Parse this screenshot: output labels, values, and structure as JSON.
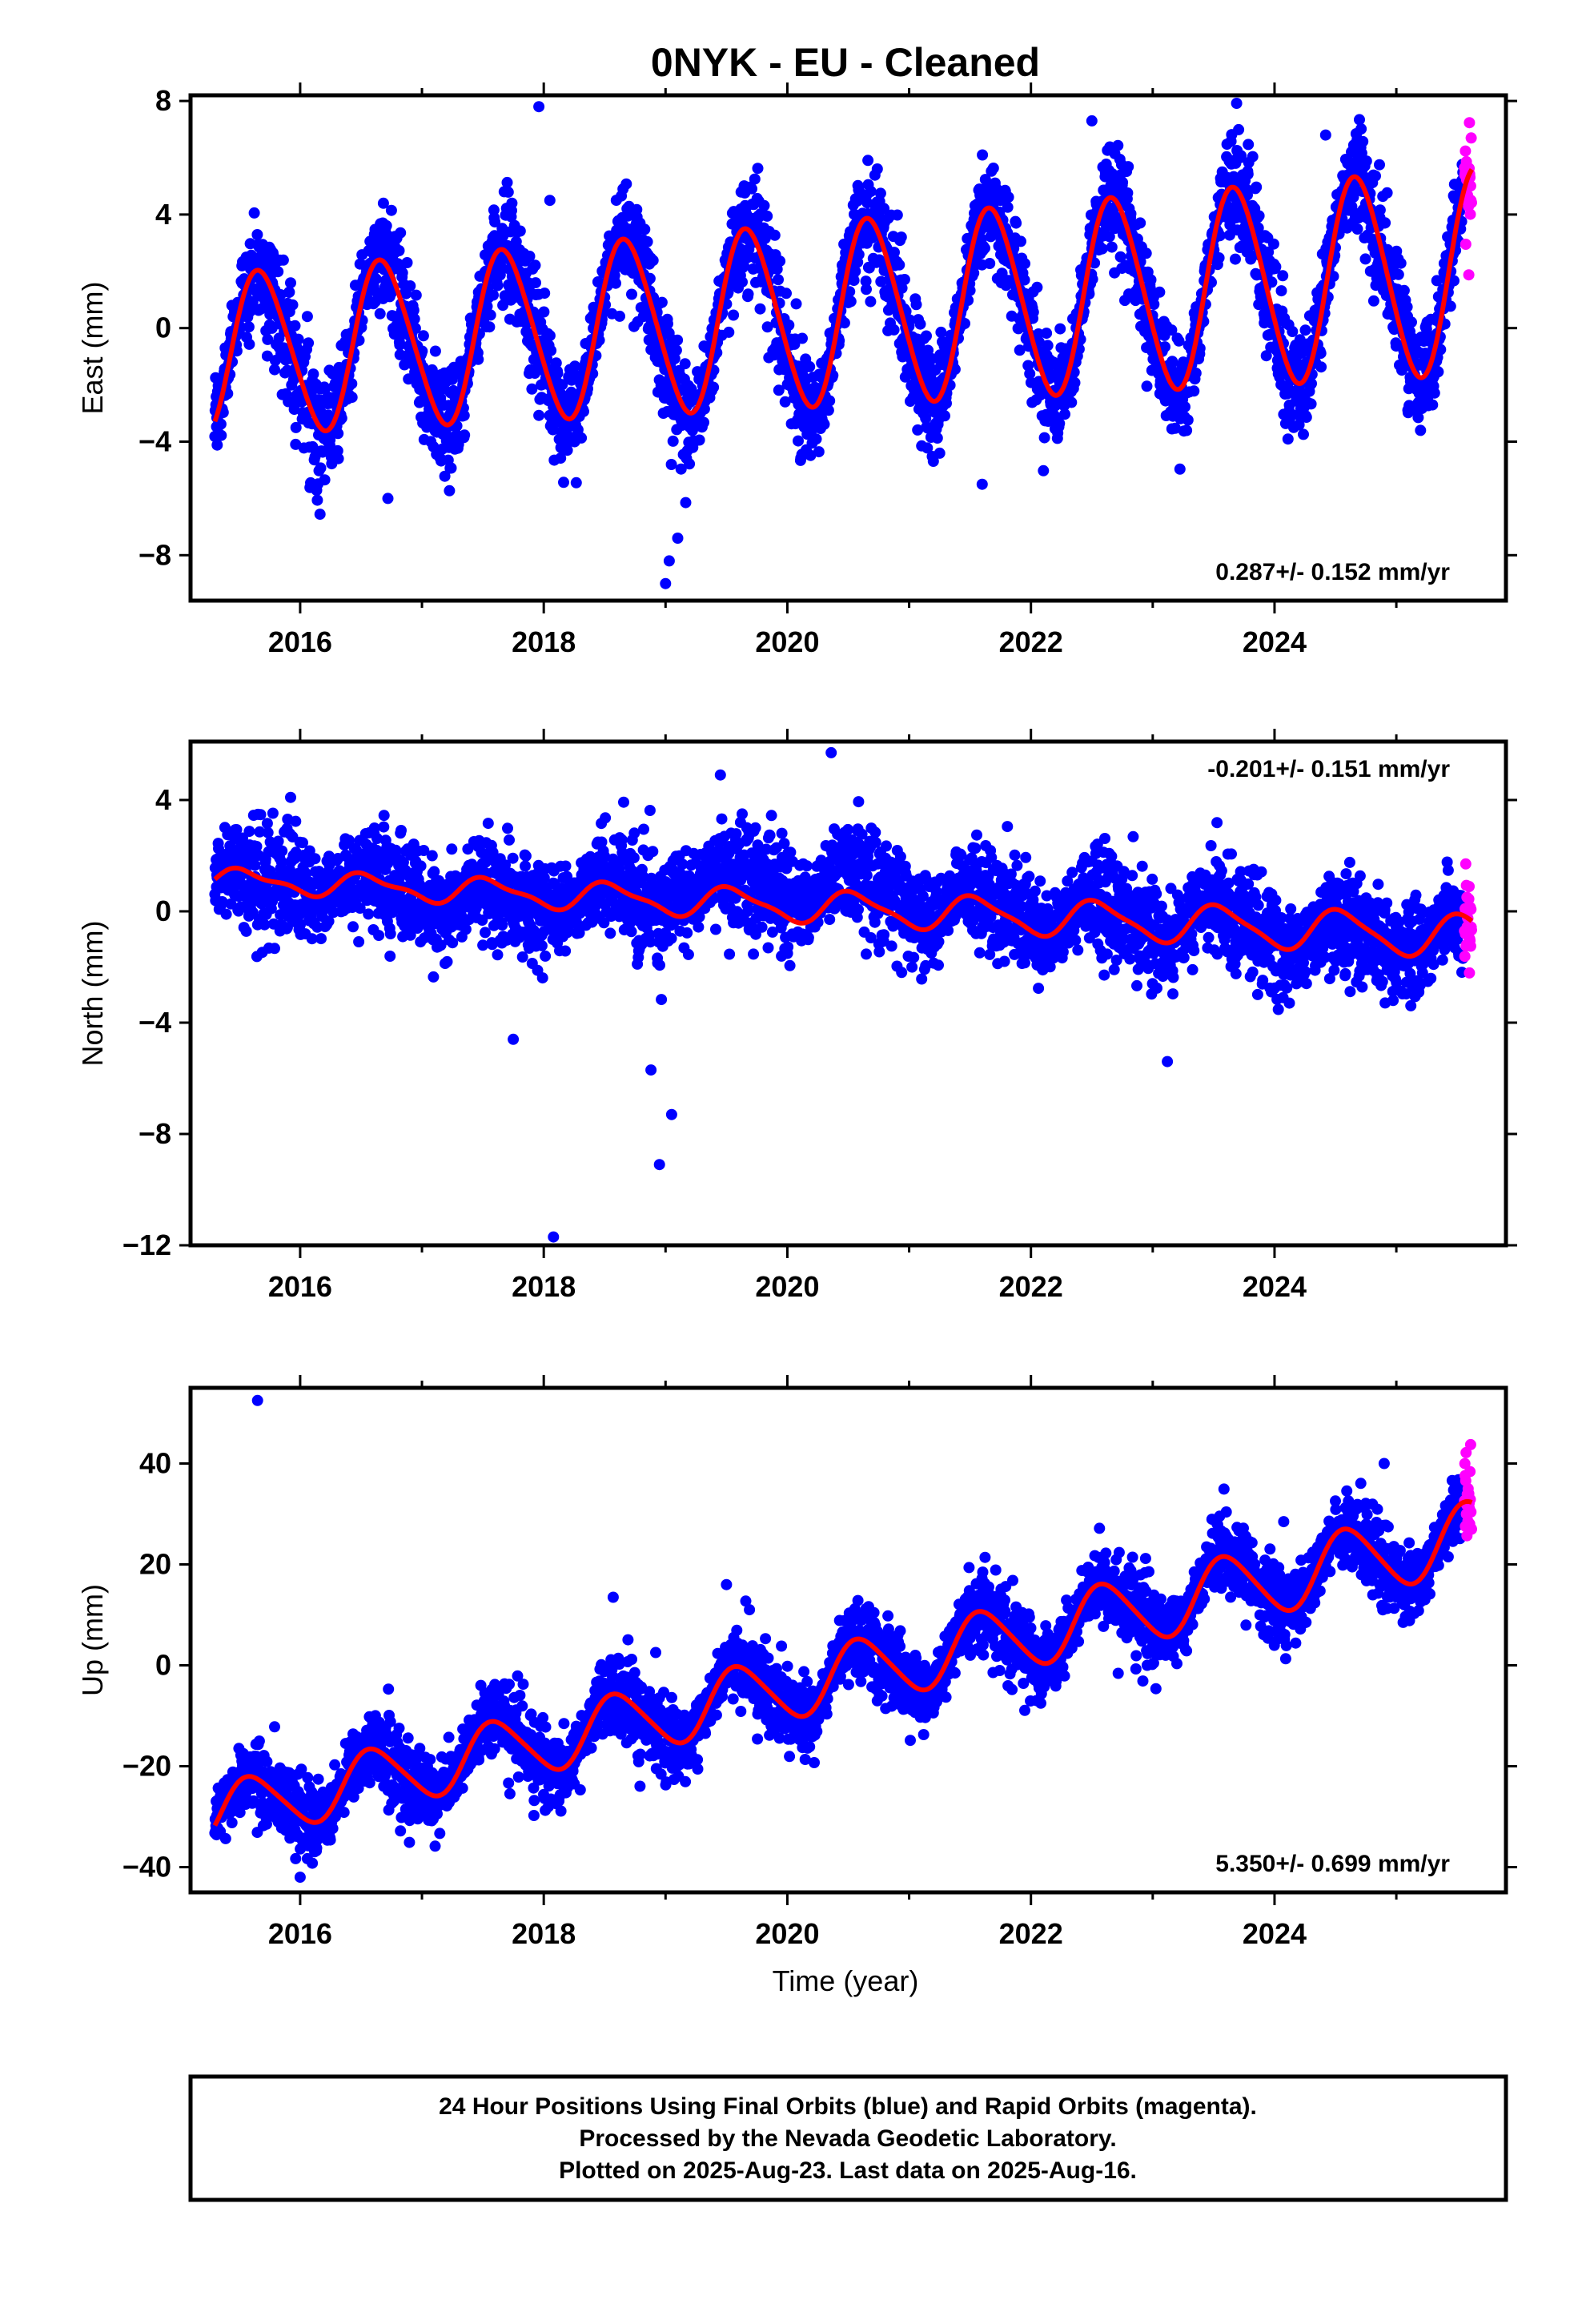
{
  "title": "0NYK  - EU - Cleaned",
  "colors": {
    "final": "#0000ff",
    "rapid": "#ff00ff",
    "model": "#ff0000",
    "axis": "#000000"
  },
  "chart_data": [
    {
      "type": "scatter",
      "ylabel": "East (mm)",
      "xlim": [
        2015.1,
        2025.9
      ],
      "ylim": [
        -9.6,
        8.2
      ],
      "yticks": [
        8,
        4,
        0,
        -4,
        -8
      ],
      "ytick_labels": [
        "8",
        "4",
        "0",
        "−4",
        "−8"
      ],
      "xticks": [
        2016,
        2018,
        2020,
        2022,
        2024
      ],
      "xtick_labels": [
        "2016",
        "2018",
        "2020",
        "2022",
        "2024"
      ],
      "rate_label": "0.287+/- 0.152 mm/yr",
      "rate_position": "bottom-right",
      "model": {
        "offset": -0.95,
        "rate": 0.287,
        "t0": 2015.3,
        "amp_annual": 2.8,
        "amp_growth": 0.08,
        "phase": 2015.43,
        "amp_semi": 0.3
      },
      "scatter_sd": 0.85,
      "final_range": [
        2015.3,
        2025.55
      ],
      "rapid_range": [
        2025.56,
        2025.62
      ],
      "outliers": [
        [
          2017.96,
          7.8
        ],
        [
          2018.05,
          4.5
        ],
        [
          2019.0,
          -9.0
        ],
        [
          2019.03,
          -8.2
        ],
        [
          2019.1,
          -7.4
        ],
        [
          2016.72,
          -6.0
        ],
        [
          2022.5,
          7.3
        ],
        [
          2024.42,
          6.8
        ],
        [
          2021.6,
          -5.5
        ]
      ]
    },
    {
      "type": "scatter",
      "ylabel": "North (mm)",
      "xlim": [
        2015.1,
        2025.9
      ],
      "ylim": [
        -12.0,
        6.1
      ],
      "yticks": [
        4,
        0,
        -4,
        -8,
        -12
      ],
      "ytick_labels": [
        "4",
        "0",
        "−4",
        "−8",
        "−12"
      ],
      "xticks": [
        2016,
        2018,
        2020,
        2022,
        2024
      ],
      "xtick_labels": [
        "2016",
        "2018",
        "2020",
        "2022",
        "2024"
      ],
      "rate_label": "-0.201+/- 0.151 mm/yr",
      "rate_position": "top-right",
      "model": {
        "offset": 1.15,
        "rate": -0.201,
        "t0": 2015.3,
        "amp_annual": 0.35,
        "amp_growth": 0.04,
        "phase": 2015.3,
        "amp_semi": 0.15
      },
      "scatter_sd": 0.8,
      "final_range": [
        2015.3,
        2025.55
      ],
      "rapid_range": [
        2025.56,
        2025.62
      ],
      "outliers": [
        [
          2018.08,
          -11.7
        ],
        [
          2018.95,
          -9.1
        ],
        [
          2019.05,
          -7.3
        ],
        [
          2020.36,
          5.7
        ],
        [
          2023.12,
          -5.4
        ],
        [
          2019.45,
          4.9
        ],
        [
          2017.75,
          -4.6
        ],
        [
          2018.88,
          -5.7
        ]
      ]
    },
    {
      "type": "scatter",
      "ylabel": "Up (mm)",
      "xlabel": "Time (year)",
      "xlim": [
        2015.1,
        2025.9
      ],
      "ylim": [
        -45,
        55
      ],
      "yticks": [
        40,
        20,
        0,
        -20,
        -40
      ],
      "ytick_labels": [
        "40",
        "20",
        "0",
        "−20",
        "−40"
      ],
      "xticks": [
        2016,
        2018,
        2020,
        2022,
        2024
      ],
      "xtick_labels": [
        "2016",
        "2018",
        "2020",
        "2022",
        "2024"
      ],
      "rate_label": "5.350+/- 0.699 mm/yr",
      "rate_position": "bottom-right",
      "model": {
        "offset": -29.5,
        "rate": 5.35,
        "t0": 2015.3,
        "amp_annual": 5.8,
        "amp_growth": 0.1,
        "phase": 2015.35,
        "amp_semi": 0.8
      },
      "scatter_sd": 3.4,
      "final_range": [
        2015.3,
        2025.55
      ],
      "rapid_range": [
        2025.56,
        2025.62
      ],
      "outliers": [
        [
          2015.65,
          52.5
        ],
        [
          2018.57,
          13.5
        ],
        [
          2016.0,
          -42.0
        ],
        [
          2024.9,
          40.0
        ],
        [
          2019.5,
          16.0
        ]
      ]
    }
  ],
  "footer": {
    "line1": "24 Hour Positions Using Final Orbits (blue) and Rapid Orbits (magenta).",
    "line2": "Processed by the Nevada Geodetic Laboratory.",
    "line3": "Plotted on 2025-Aug-23. Last data on 2025-Aug-16."
  }
}
